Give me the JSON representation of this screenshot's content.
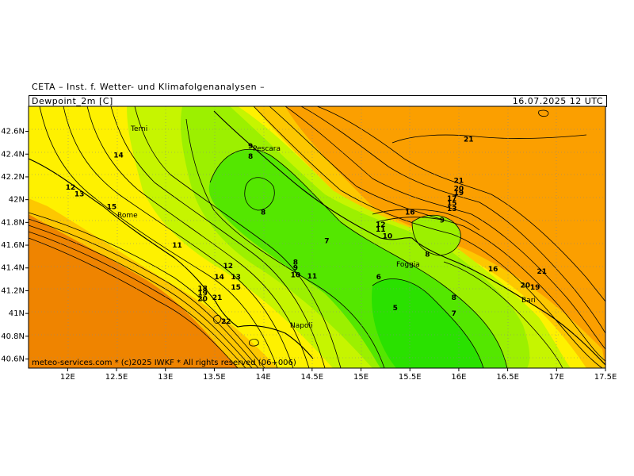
{
  "header": {
    "source_line": "CETA – Inst. f. Wetter- und Klimafolgenanalysen –",
    "field_label": "Dewpoint_2m [C]",
    "valid_time": "16.07.2025 12 UTC"
  },
  "footer": {
    "credit": "meteo-services.com * (c)2025 IWKF * All rights reserved (06+006)"
  },
  "axes": {
    "lon_labels": [
      "12E",
      "12.5E",
      "13E",
      "13.5E",
      "14E",
      "14.5E",
      "15E",
      "15.5E",
      "16E",
      "16.5E",
      "17E",
      "17.5E"
    ],
    "lat_labels": [
      "42.6N",
      "42.4N",
      "42.2N",
      "42N",
      "41.8N",
      "41.6N",
      "41.4N",
      "41.2N",
      "41N",
      "40.8N",
      "40.6N"
    ]
  },
  "cities": [
    {
      "name": "Terni"
    },
    {
      "name": "Pescara"
    },
    {
      "name": "Rome"
    },
    {
      "name": "Foggia"
    },
    {
      "name": "Napoli"
    },
    {
      "name": "Bari"
    }
  ],
  "contour_labels": [
    {
      "text": "9",
      "lon": 13.87,
      "lat": 42.47
    },
    {
      "text": "8",
      "lon": 13.87,
      "lat": 42.38
    },
    {
      "text": "14",
      "lon": 12.52,
      "lat": 42.39
    },
    {
      "text": "12",
      "lon": 12.03,
      "lat": 42.11
    },
    {
      "text": "13",
      "lon": 12.12,
      "lat": 42.05
    },
    {
      "text": "15",
      "lon": 12.45,
      "lat": 41.94
    },
    {
      "text": "8",
      "lon": 14.0,
      "lat": 41.89
    },
    {
      "text": "11",
      "lon": 13.12,
      "lat": 41.6
    },
    {
      "text": "7",
      "lon": 14.65,
      "lat": 41.64
    },
    {
      "text": "12",
      "lon": 13.64,
      "lat": 41.42
    },
    {
      "text": "14",
      "lon": 13.55,
      "lat": 41.32
    },
    {
      "text": "13",
      "lon": 13.72,
      "lat": 41.32
    },
    {
      "text": "15",
      "lon": 13.72,
      "lat": 41.23
    },
    {
      "text": "8",
      "lon": 14.33,
      "lat": 41.45
    },
    {
      "text": "9",
      "lon": 14.33,
      "lat": 41.4
    },
    {
      "text": "10",
      "lon": 14.33,
      "lat": 41.34
    },
    {
      "text": "11",
      "lon": 14.5,
      "lat": 41.33
    },
    {
      "text": "18",
      "lon": 13.38,
      "lat": 41.22
    },
    {
      "text": "19",
      "lon": 13.38,
      "lat": 41.18
    },
    {
      "text": "20",
      "lon": 13.38,
      "lat": 41.13
    },
    {
      "text": "21",
      "lon": 13.53,
      "lat": 41.14
    },
    {
      "text": "22",
      "lon": 13.62,
      "lat": 40.93
    },
    {
      "text": "21",
      "lon": 16.1,
      "lat": 42.53
    },
    {
      "text": "21",
      "lon": 16.0,
      "lat": 42.17
    },
    {
      "text": "20",
      "lon": 16.0,
      "lat": 42.1
    },
    {
      "text": "19",
      "lon": 16.0,
      "lat": 42.06
    },
    {
      "text": "17",
      "lon": 15.93,
      "lat": 42.01
    },
    {
      "text": "15",
      "lon": 15.93,
      "lat": 41.97
    },
    {
      "text": "13",
      "lon": 15.93,
      "lat": 41.92
    },
    {
      "text": "16",
      "lon": 15.5,
      "lat": 41.89
    },
    {
      "text": "9",
      "lon": 15.83,
      "lat": 41.82
    },
    {
      "text": "12",
      "lon": 15.2,
      "lat": 41.78
    },
    {
      "text": "11",
      "lon": 15.2,
      "lat": 41.74
    },
    {
      "text": "10",
      "lon": 15.27,
      "lat": 41.68
    },
    {
      "text": "8",
      "lon": 15.68,
      "lat": 41.52
    },
    {
      "text": "16",
      "lon": 16.35,
      "lat": 41.39
    },
    {
      "text": "21",
      "lon": 16.85,
      "lat": 41.37
    },
    {
      "text": "20",
      "lon": 16.68,
      "lat": 41.25
    },
    {
      "text": "19",
      "lon": 16.78,
      "lat": 41.23
    },
    {
      "text": "6",
      "lon": 15.18,
      "lat": 41.32
    },
    {
      "text": "8",
      "lon": 15.95,
      "lat": 41.14
    },
    {
      "text": "5",
      "lon": 15.35,
      "lat": 41.05
    },
    {
      "text": "7",
      "lon": 15.95,
      "lat": 41.0
    }
  ],
  "colors": {
    "warm_orange": "#fb9f00",
    "deep_orange": "#ef8400",
    "gold": "#fdc700",
    "yellow": "#fef100",
    "pale_green": "#c6f500",
    "light_green": "#9cf000",
    "green": "#54e700",
    "bright_green": "#2ae100"
  }
}
